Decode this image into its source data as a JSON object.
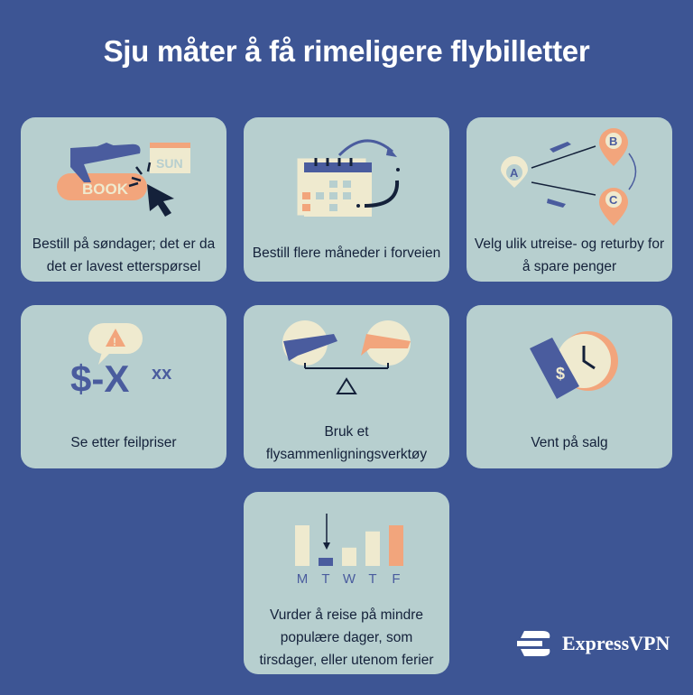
{
  "title": "Sju måter å få rimeligere flybilletter",
  "colors": {
    "background": "#3d5594",
    "card": "#b7cfcf",
    "cream": "#efeacf",
    "orange": "#f2a57c",
    "navy": "#14213a",
    "blue": "#4a5c9e"
  },
  "cards": [
    {
      "caption": "Bestill på søndager; det er da det er lavest etterspørsel",
      "icon": "plane-book-button-sunday-icon",
      "book_label": "BOOK",
      "sun_label": "SUN"
    },
    {
      "caption": "Bestill flere måneder i forveien",
      "icon": "calendar-arrow-icon"
    },
    {
      "caption": "Velg ulik utreise- og returby for å spare penger",
      "icon": "route-pins-icon",
      "pins": [
        "A",
        "B",
        "C"
      ]
    },
    {
      "caption": "Se etter feilpriser",
      "icon": "price-error-icon",
      "price_text": "$-X",
      "price_sup": "xx",
      "alert": "!"
    },
    {
      "caption": "Bruk et flysammenligningsverktøy",
      "icon": "plane-scale-icon"
    },
    {
      "caption": "Vent på salg",
      "icon": "price-tag-clock-icon",
      "tag_symbol": "$"
    },
    {
      "caption": "Vurder å reise på mindre populære dager, som tirsdager, eller utenom ferier",
      "icon": "weekday-bars-icon",
      "days": [
        "M",
        "T",
        "W",
        "T",
        "F"
      ],
      "levels": [
        1.0,
        0.2,
        0.45,
        0.85,
        1.0
      ],
      "highlight_day": 1
    }
  ],
  "brand": "ExpressVPN"
}
